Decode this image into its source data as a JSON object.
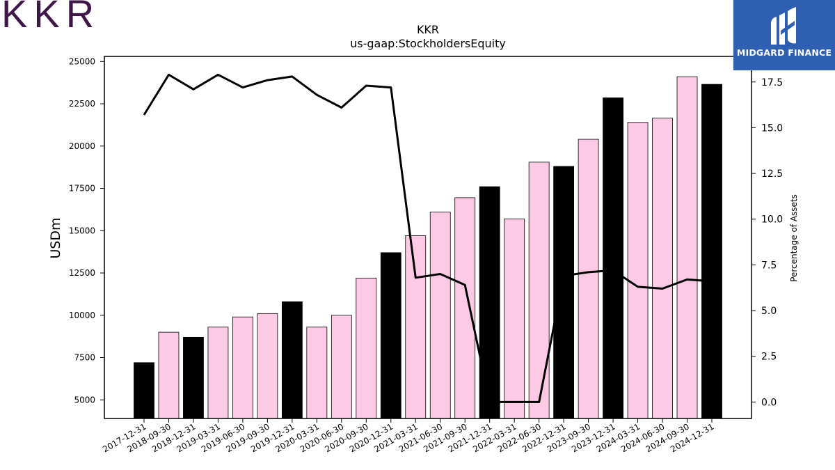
{
  "logos": {
    "company": "KKR",
    "publisher": "MIDGARD FINANCE",
    "publisher_icon": "midgard-mark-icon"
  },
  "colors": {
    "bar_primary": "#000000",
    "bar_secondary": "#fccae4",
    "line": "#000000",
    "publisher_bg": "#2f5fb0",
    "company_logo": "#3f1748"
  },
  "chart_data": {
    "type": "bar",
    "title": "KKR",
    "subtitle": "us-gaap:StockholdersEquity",
    "ylabel": "USDm",
    "y2label": "Percentage of Assets",
    "ylim": [
      3900,
      25300
    ],
    "y2lim": [
      -0.9,
      18.9
    ],
    "yticks": [
      5000,
      7500,
      10000,
      12500,
      15000,
      17500,
      20000,
      22500,
      25000
    ],
    "y2ticks": [
      "0.0",
      "2.5",
      "5.0",
      "7.5",
      "10.0",
      "12.5",
      "15.0",
      "17.5"
    ],
    "categories": [
      "2017-12-31",
      "2018-09-30",
      "2018-12-31",
      "2019-03-31",
      "2019-06-30",
      "2019-09-30",
      "2019-12-31",
      "2020-03-31",
      "2020-06-30",
      "2020-09-30",
      "2020-12-31",
      "2021-03-31",
      "2021-06-30",
      "2021-09-30",
      "2021-12-31",
      "2022-03-31",
      "2022-06-30",
      "2022-12-31",
      "2023-09-30",
      "2023-12-31",
      "2024-03-31",
      "2024-06-30",
      "2024-09-30",
      "2024-12-31"
    ],
    "series": [
      {
        "values": [
          7200,
          9000,
          8700,
          9300,
          9900,
          10100,
          10800,
          9300,
          10000,
          12200,
          13700,
          14700,
          16100,
          16950,
          17600,
          15700,
          19050,
          18800,
          20400,
          22850,
          21400,
          21650,
          24100,
          23650
        ],
        "highlight": [
          true,
          false,
          true,
          false,
          false,
          false,
          true,
          false,
          false,
          false,
          true,
          false,
          false,
          false,
          true,
          false,
          false,
          true,
          false,
          true,
          false,
          false,
          false,
          true
        ]
      },
      {
        "type": "line",
        "axis": "right",
        "values": [
          15.7,
          17.9,
          17.1,
          17.9,
          17.2,
          17.6,
          17.8,
          16.8,
          16.1,
          17.3,
          17.2,
          6.8,
          7.0,
          6.4,
          0.0,
          0.0,
          0.0,
          6.9,
          7.1,
          7.2,
          6.3,
          6.2,
          6.7,
          6.6
        ]
      }
    ]
  }
}
